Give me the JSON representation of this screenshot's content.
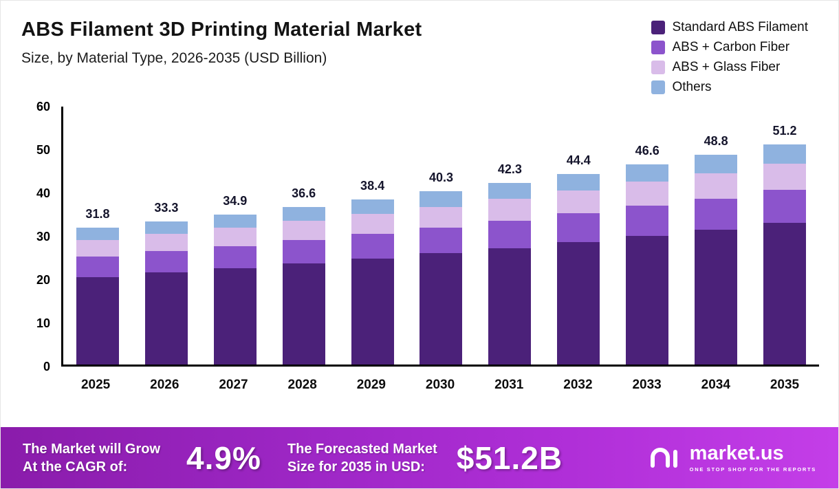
{
  "chart_data": {
    "type": "bar",
    "stacked": true,
    "title": "ABS Filament 3D Printing Material Market",
    "subtitle": "Size, by Material Type, 2026-2035 (USD Billion)",
    "categories": [
      "2025",
      "2026",
      "2027",
      "2028",
      "2029",
      "2030",
      "2031",
      "2032",
      "2033",
      "2034",
      "2035"
    ],
    "series": [
      {
        "name": "Standard ABS Filament",
        "color": "#4b2179",
        "values": [
          20.4,
          21.4,
          22.4,
          23.5,
          24.6,
          25.9,
          27.1,
          28.5,
          29.9,
          31.3,
          32.9
        ]
      },
      {
        "name": "ABS + Carbon Fiber",
        "color": "#8c54cc",
        "values": [
          4.8,
          5.0,
          5.2,
          5.5,
          5.8,
          6.0,
          6.3,
          6.7,
          7.0,
          7.3,
          7.7
        ]
      },
      {
        "name": "ABS + Glass Fiber",
        "color": "#d9bce9",
        "values": [
          3.8,
          4.0,
          4.2,
          4.4,
          4.6,
          4.8,
          5.1,
          5.3,
          5.6,
          5.9,
          6.1
        ]
      },
      {
        "name": "Others",
        "color": "#8fb2df",
        "values": [
          2.8,
          2.9,
          3.1,
          3.2,
          3.4,
          3.6,
          3.8,
          3.9,
          4.1,
          4.3,
          4.5
        ]
      }
    ],
    "totals": [
      31.8,
      33.3,
      34.9,
      36.6,
      38.4,
      40.3,
      42.3,
      44.4,
      46.6,
      48.8,
      51.2
    ],
    "ylim": [
      0,
      60
    ],
    "yticks": [
      0,
      10,
      20,
      30,
      40,
      50,
      60
    ],
    "xlabel": "",
    "ylabel": "",
    "grid": false,
    "legend_position": "top-right"
  },
  "footer": {
    "growth_line1": "The Market will Grow",
    "growth_line2": "At the CAGR of:",
    "cagr_value": "4.9%",
    "forecast_line1": "The Forecasted Market",
    "forecast_line2": "Size for 2035 in USD:",
    "forecast_value": "$51.2B",
    "brand_name": "market.us",
    "brand_tagline": "ONE STOP SHOP FOR THE REPORTS"
  }
}
